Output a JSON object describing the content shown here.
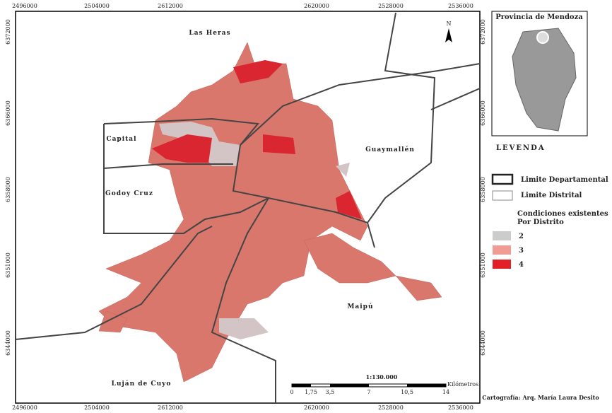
{
  "map": {
    "coords_top": [
      "2496000",
      "2504000",
      "2612000",
      "2620000",
      "2528000",
      "2536000"
    ],
    "coords_left": [
      "6372000",
      "6366000",
      "6358000",
      "6351000",
      "6344000"
    ],
    "departments": [
      "Las Heras",
      "Capital",
      "Godoy Cruz",
      "Guaymallén",
      "Maipú",
      "Luján de Cuyo"
    ],
    "north": "N"
  },
  "inset": {
    "title": "Provincia de Mendoza"
  },
  "legend": {
    "title": "LEVENDA",
    "lines": [
      "Limite Departamental",
      "Limite Distrital"
    ],
    "subtitle": [
      "Condiciones existentes",
      "Por Distrito"
    ],
    "classes": [
      {
        "value": 2,
        "color": "#cccccc"
      },
      {
        "value": 3,
        "color": "#f29a94"
      },
      {
        "value": 4,
        "color": "#e32028"
      }
    ]
  },
  "scale": {
    "ratio": "1:130.000",
    "unit": "Kilómetros",
    "ticks": [
      "0",
      "1,75",
      "3,5",
      "7",
      "10,5",
      "14"
    ]
  },
  "credit": "Cartografía: Arq. María Laura Desito"
}
